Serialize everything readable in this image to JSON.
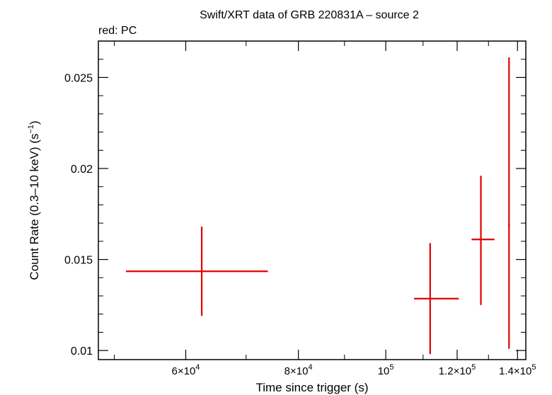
{
  "chart_data": {
    "type": "scatter",
    "title": "Swift/XRT data of GRB 220831A – source 2",
    "subtitle": "red: PC",
    "xlabel": "Time since trigger (s)",
    "ylabel": "Count Rate (0.3–10 keV) (s",
    "ylabel_sup": "−1",
    "ylabel_tail": ")",
    "xscale": "log",
    "xlim": [
      48000,
      143000
    ],
    "ylim": [
      0.0095,
      0.027
    ],
    "x_ticks": [
      {
        "value": 60000,
        "mantissa": "6×10",
        "exp": "4"
      },
      {
        "value": 80000,
        "mantissa": "8×10",
        "exp": "4"
      },
      {
        "value": 100000,
        "mantissa": "10",
        "exp": "5"
      },
      {
        "value": 120000,
        "mantissa": "1.2×10",
        "exp": "5"
      },
      {
        "value": 140000,
        "mantissa": "1.4×10",
        "exp": "5"
      }
    ],
    "y_ticks": [
      {
        "value": 0.01,
        "label": "0.01"
      },
      {
        "value": 0.015,
        "label": "0.015"
      },
      {
        "value": 0.02,
        "label": "0.02"
      },
      {
        "value": 0.025,
        "label": "0.025"
      }
    ],
    "series": [
      {
        "name": "PC",
        "color": "#e00000",
        "points": [
          {
            "x": 62500,
            "xlo": 51500,
            "xhi": 74000,
            "y": 0.01435,
            "ylo": 0.0119,
            "yhi": 0.0168
          },
          {
            "x": 112000,
            "xlo": 107500,
            "xhi": 120500,
            "y": 0.01285,
            "ylo": 0.0098,
            "yhi": 0.0159
          },
          {
            "x": 127500,
            "xlo": 124500,
            "xhi": 132000,
            "y": 0.0161,
            "ylo": 0.0125,
            "yhi": 0.0196
          },
          {
            "x": 137000,
            "xlo": 136700,
            "xhi": 137300,
            "y": 0.0169,
            "ylo": 0.0101,
            "yhi": 0.0261
          }
        ]
      }
    ]
  }
}
